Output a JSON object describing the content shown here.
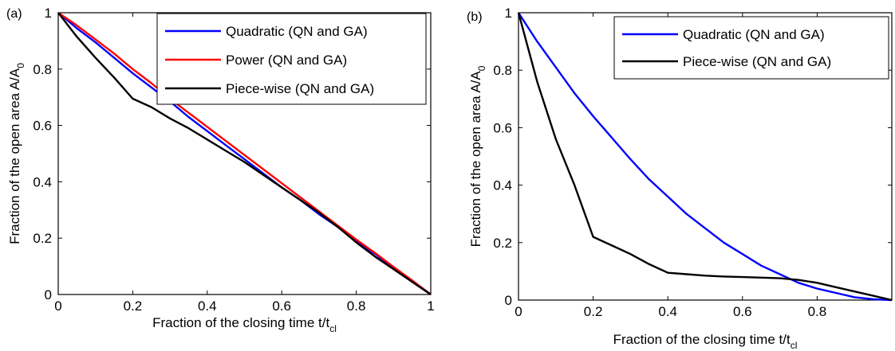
{
  "chart_data": [
    {
      "panel_label": "(a)",
      "type": "line",
      "xlabel": "Fraction of the closing time t/t",
      "xlabel_sub": "cl",
      "ylabel": "Fraction of the open area A/A",
      "ylabel_sub": "0",
      "xlim": [
        0,
        1
      ],
      "ylim": [
        0,
        1
      ],
      "xticks": [
        0,
        0.2,
        0.4,
        0.6,
        0.8,
        1
      ],
      "yticks": [
        0,
        0.2,
        0.4,
        0.6,
        0.8,
        1
      ],
      "xtick_labels": [
        "0",
        "0.2",
        "0.4",
        "0.6",
        "0.8",
        "1"
      ],
      "ytick_labels": [
        "0",
        "0.2",
        "0.4",
        "0.6",
        "0.8",
        "1"
      ],
      "legend_position": "top-right",
      "series": [
        {
          "name": "Quadratic (QN and GA)",
          "color": "#0000ff",
          "points": [
            [
              0,
              1
            ],
            [
              0.05,
              0.945
            ],
            [
              0.1,
              0.895
            ],
            [
              0.15,
              0.84
            ],
            [
              0.2,
              0.785
            ],
            [
              0.25,
              0.735
            ],
            [
              0.3,
              0.685
            ],
            [
              0.35,
              0.63
            ],
            [
              0.4,
              0.58
            ],
            [
              0.45,
              0.53
            ],
            [
              0.5,
              0.48
            ],
            [
              0.55,
              0.43
            ],
            [
              0.6,
              0.38
            ],
            [
              0.65,
              0.335
            ],
            [
              0.7,
              0.285
            ],
            [
              0.75,
              0.24
            ],
            [
              0.8,
              0.19
            ],
            [
              0.85,
              0.145
            ],
            [
              0.9,
              0.095
            ],
            [
              0.95,
              0.05
            ],
            [
              1,
              0
            ]
          ]
        },
        {
          "name": "Power (QN and GA)",
          "color": "#ff0000",
          "points": [
            [
              0,
              1
            ],
            [
              0.05,
              0.955
            ],
            [
              0.1,
              0.905
            ],
            [
              0.15,
              0.855
            ],
            [
              0.2,
              0.8
            ],
            [
              0.25,
              0.75
            ],
            [
              0.3,
              0.695
            ],
            [
              0.35,
              0.645
            ],
            [
              0.4,
              0.595
            ],
            [
              0.45,
              0.545
            ],
            [
              0.5,
              0.495
            ],
            [
              0.55,
              0.445
            ],
            [
              0.6,
              0.395
            ],
            [
              0.65,
              0.345
            ],
            [
              0.7,
              0.295
            ],
            [
              0.75,
              0.245
            ],
            [
              0.8,
              0.195
            ],
            [
              0.85,
              0.148
            ],
            [
              0.9,
              0.098
            ],
            [
              0.95,
              0.05
            ],
            [
              1,
              0
            ]
          ]
        },
        {
          "name": "Piece-wise (QN and GA)",
          "color": "#000000",
          "points": [
            [
              0,
              1
            ],
            [
              0.05,
              0.915
            ],
            [
              0.1,
              0.84
            ],
            [
              0.15,
              0.77
            ],
            [
              0.2,
              0.695
            ],
            [
              0.25,
              0.665
            ],
            [
              0.3,
              0.625
            ],
            [
              0.35,
              0.59
            ],
            [
              0.4,
              0.55
            ],
            [
              0.45,
              0.51
            ],
            [
              0.5,
              0.47
            ],
            [
              0.55,
              0.425
            ],
            [
              0.6,
              0.38
            ],
            [
              0.65,
              0.335
            ],
            [
              0.7,
              0.29
            ],
            [
              0.75,
              0.24
            ],
            [
              0.8,
              0.185
            ],
            [
              0.85,
              0.135
            ],
            [
              0.9,
              0.09
            ],
            [
              0.95,
              0.045
            ],
            [
              1,
              0
            ]
          ]
        }
      ]
    },
    {
      "panel_label": "(b)",
      "type": "line",
      "xlabel": "Fraction of the closing time t/t",
      "xlabel_sub": "cl",
      "ylabel": "Fraction of the open area A/A",
      "ylabel_sub": "0",
      "xlim": [
        0,
        1
      ],
      "ylim": [
        0,
        1
      ],
      "xticks": [
        0,
        0.2,
        0.4,
        0.6,
        0.8
      ],
      "yticks": [
        0,
        0.2,
        0.4,
        0.6,
        0.8,
        1
      ],
      "xtick_labels": [
        "0",
        "0.2",
        "0.4",
        "0.6",
        "0.8"
      ],
      "ytick_labels": [
        "0",
        "0.2",
        "0.4",
        "0.6",
        "0.8",
        "1"
      ],
      "legend_position": "top-right",
      "series": [
        {
          "name": "Quadratic (QN and GA)",
          "color": "#0000ff",
          "points": [
            [
              0,
              1
            ],
            [
              0.05,
              0.9
            ],
            [
              0.1,
              0.81
            ],
            [
              0.15,
              0.72
            ],
            [
              0.2,
              0.64
            ],
            [
              0.25,
              0.565
            ],
            [
              0.3,
              0.49
            ],
            [
              0.35,
              0.42
            ],
            [
              0.4,
              0.36
            ],
            [
              0.45,
              0.3
            ],
            [
              0.5,
              0.25
            ],
            [
              0.55,
              0.2
            ],
            [
              0.6,
              0.16
            ],
            [
              0.65,
              0.12
            ],
            [
              0.7,
              0.09
            ],
            [
              0.75,
              0.06
            ],
            [
              0.8,
              0.04
            ],
            [
              0.85,
              0.025
            ],
            [
              0.9,
              0.01
            ],
            [
              0.95,
              0.003
            ],
            [
              1,
              0
            ]
          ]
        },
        {
          "name": "Piece-wise (QN and GA)",
          "color": "#000000",
          "points": [
            [
              0,
              1
            ],
            [
              0.05,
              0.76
            ],
            [
              0.1,
              0.56
            ],
            [
              0.15,
              0.4
            ],
            [
              0.2,
              0.22
            ],
            [
              0.25,
              0.19
            ],
            [
              0.3,
              0.16
            ],
            [
              0.35,
              0.125
            ],
            [
              0.4,
              0.095
            ],
            [
              0.45,
              0.09
            ],
            [
              0.5,
              0.085
            ],
            [
              0.55,
              0.082
            ],
            [
              0.6,
              0.08
            ],
            [
              0.65,
              0.078
            ],
            [
              0.7,
              0.076
            ],
            [
              0.75,
              0.07
            ],
            [
              0.8,
              0.06
            ],
            [
              0.85,
              0.045
            ],
            [
              0.9,
              0.03
            ],
            [
              0.95,
              0.015
            ],
            [
              1,
              0
            ]
          ]
        }
      ]
    }
  ]
}
